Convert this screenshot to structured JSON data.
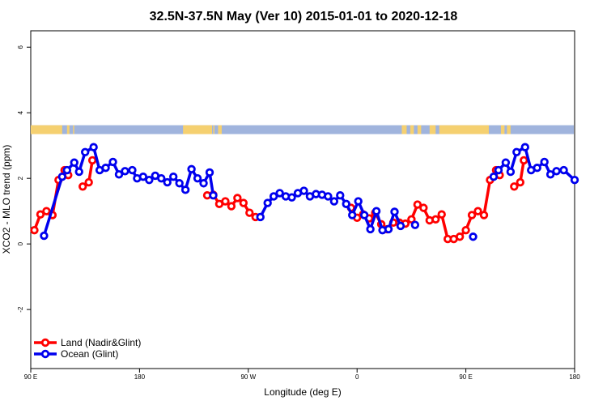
{
  "chart_data": {
    "type": "line",
    "title": "32.5N-37.5N May (Ver 10)   2015-01-01 to 2020-12-18",
    "xlabel": "Longitude (deg E)",
    "ylabel": "XCO2 - MLO trend (ppm)",
    "xlim": [
      90,
      540
    ],
    "ylim": [
      -3.8,
      6.5
    ],
    "x_ticks": [
      {
        "value": 90,
        "label": "90 E"
      },
      {
        "value": 180,
        "label": "180"
      },
      {
        "value": 270,
        "label": "90 W"
      },
      {
        "value": 360,
        "label": "0"
      },
      {
        "value": 450,
        "label": "90 E"
      },
      {
        "value": 540,
        "label": "180"
      }
    ],
    "y_ticks": [
      {
        "value": -2,
        "label": "-2"
      },
      {
        "value": 0,
        "label": "0"
      },
      {
        "value": 2,
        "label": "2"
      },
      {
        "value": 4,
        "label": "4"
      },
      {
        "value": 6,
        "label": "6"
      }
    ],
    "legend_position": "bottom-left",
    "series": [
      {
        "name": "Land (Nadir&Glint)",
        "color": "#ff0000",
        "segments": [
          [
            [
              93,
              0.42
            ],
            [
              98,
              0.9
            ],
            [
              103,
              1.0
            ],
            [
              108,
              0.88
            ],
            [
              113,
              1.95
            ],
            [
              118,
              2.25
            ],
            [
              121,
              2.1
            ]
          ],
          [
            [
              133,
              1.75
            ],
            [
              138,
              1.88
            ],
            [
              141,
              2.55
            ]
          ],
          [
            [
              236,
              1.48
            ],
            [
              241,
              1.5
            ],
            [
              246,
              1.22
            ],
            [
              251,
              1.3
            ],
            [
              256,
              1.15
            ],
            [
              261,
              1.4
            ],
            [
              266,
              1.25
            ],
            [
              271,
              0.95
            ],
            [
              276,
              0.82
            ]
          ],
          [
            [
              355,
              1.1
            ],
            [
              360,
              0.8
            ],
            [
              365,
              0.9
            ],
            [
              370,
              0.78
            ],
            [
              375,
              0.95
            ],
            [
              380,
              0.6
            ],
            [
              385,
              0.45
            ],
            [
              390,
              0.65
            ],
            [
              395,
              0.65
            ],
            [
              400,
              0.62
            ],
            [
              405,
              0.75
            ],
            [
              410,
              1.2
            ],
            [
              415,
              1.1
            ],
            [
              420,
              0.72
            ],
            [
              425,
              0.75
            ],
            [
              430,
              0.9
            ],
            [
              435,
              0.15
            ],
            [
              440,
              0.15
            ],
            [
              445,
              0.22
            ],
            [
              450,
              0.42
            ],
            [
              455,
              0.88
            ],
            [
              460,
              1.0
            ],
            [
              465,
              0.88
            ],
            [
              470,
              1.95
            ],
            [
              475,
              2.25
            ],
            [
              478,
              2.1
            ]
          ],
          [
            [
              490,
              1.75
            ],
            [
              495,
              1.88
            ],
            [
              498,
              2.55
            ]
          ]
        ]
      },
      {
        "name": "Ocean (Glint)",
        "color": "#0000ee",
        "segments": [
          [
            [
              101,
              0.25
            ],
            [
              116,
              2.05
            ],
            [
              120,
              2.25
            ],
            [
              126,
              2.48
            ],
            [
              130,
              2.2
            ],
            [
              135,
              2.8
            ],
            [
              142,
              2.95
            ],
            [
              147,
              2.25
            ],
            [
              152,
              2.32
            ],
            [
              158,
              2.5
            ],
            [
              163,
              2.12
            ],
            [
              168,
              2.22
            ],
            [
              174,
              2.25
            ],
            [
              178,
              2.0
            ],
            [
              183,
              2.05
            ],
            [
              188,
              1.95
            ],
            [
              193,
              2.08
            ],
            [
              198,
              2.0
            ],
            [
              203,
              1.88
            ],
            [
              208,
              2.05
            ],
            [
              213,
              1.85
            ],
            [
              218,
              1.65
            ],
            [
              223,
              2.28
            ],
            [
              228,
              2.0
            ],
            [
              233,
              1.85
            ],
            [
              238,
              2.18
            ],
            [
              241,
              1.48
            ]
          ],
          [
            [
              280,
              0.82
            ],
            [
              286,
              1.25
            ],
            [
              291,
              1.45
            ],
            [
              296,
              1.55
            ],
            [
              301,
              1.45
            ],
            [
              306,
              1.42
            ],
            [
              311,
              1.55
            ],
            [
              316,
              1.62
            ],
            [
              321,
              1.45
            ],
            [
              326,
              1.52
            ],
            [
              331,
              1.5
            ],
            [
              336,
              1.45
            ],
            [
              341,
              1.3
            ],
            [
              346,
              1.48
            ],
            [
              351,
              1.22
            ],
            [
              356,
              0.88
            ],
            [
              361,
              1.3
            ],
            [
              366,
              0.88
            ],
            [
              371,
              0.45
            ],
            [
              376,
              1.0
            ],
            [
              381,
              0.42
            ],
            [
              386,
              0.45
            ],
            [
              391,
              0.98
            ],
            [
              396,
              0.55
            ]
          ],
          [
            [
              408,
              0.58
            ]
          ],
          [
            [
              456,
              0.22
            ]
          ],
          [
            [
              473,
              2.05
            ],
            [
              477,
              2.25
            ],
            [
              483,
              2.48
            ],
            [
              487,
              2.2
            ],
            [
              492,
              2.8
            ],
            [
              499,
              2.95
            ],
            [
              504,
              2.25
            ],
            [
              509,
              2.32
            ],
            [
              515,
              2.5
            ],
            [
              520,
              2.12
            ],
            [
              525,
              2.22
            ],
            [
              531,
              2.25
            ],
            [
              540,
              1.95
            ]
          ]
        ]
      }
    ],
    "land_ocean_strip": {
      "y_range": [
        3.35,
        3.62
      ],
      "land_color": "#f5d070",
      "ocean_color": "#a0b4dd",
      "land_x_ranges": [
        [
          90,
          116
        ],
        [
          120,
          122
        ],
        [
          125,
          126
        ],
        [
          216,
          240
        ],
        [
          241,
          242
        ],
        [
          245,
          248
        ],
        [
          397,
          401
        ],
        [
          404,
          407
        ],
        [
          410,
          413
        ],
        [
          420,
          425
        ],
        [
          428,
          469
        ],
        [
          479,
          482
        ],
        [
          484,
          487
        ]
      ]
    }
  }
}
